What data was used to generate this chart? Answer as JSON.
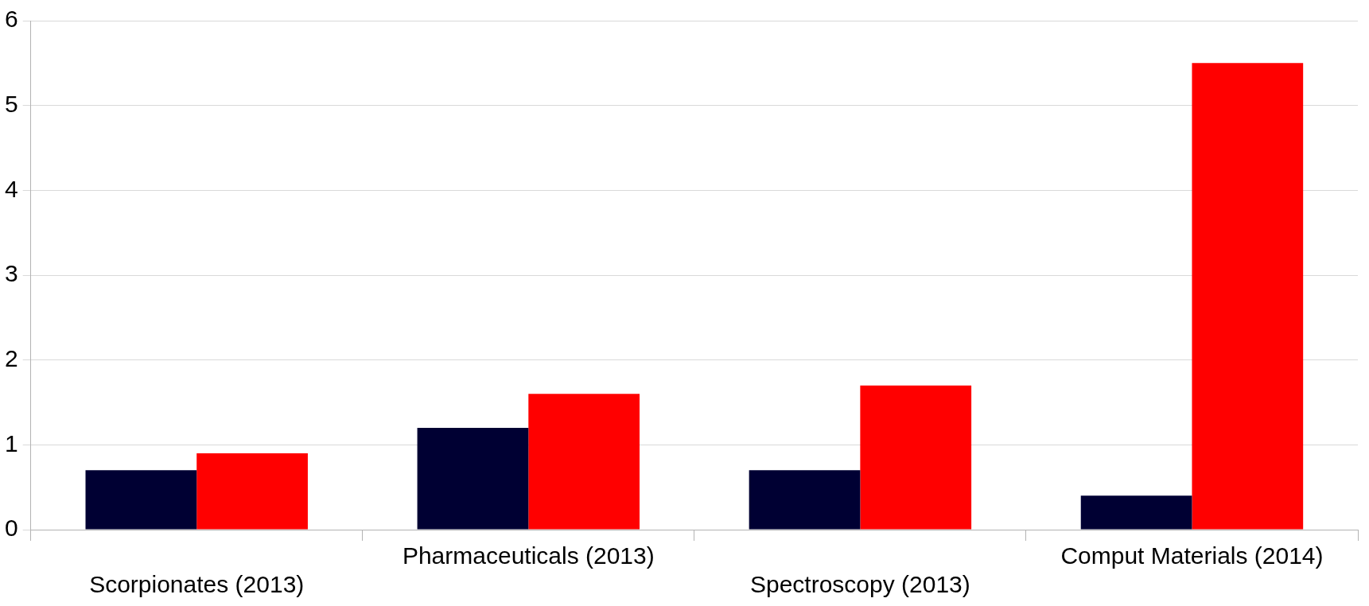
{
  "chart_data": {
    "type": "bar",
    "categories": [
      "Scorpionates (2013)",
      "Pharmaceuticals (2013)",
      "Spectroscopy (2013)",
      "Comput Materials (2014)"
    ],
    "series": [
      {
        "color": "#000033",
        "values": [
          0.7,
          1.2,
          0.7,
          0.4
        ]
      },
      {
        "color": "#ff0000",
        "values": [
          0.9,
          1.6,
          1.7,
          5.5
        ]
      }
    ],
    "ylim": [
      0,
      6
    ],
    "yticks": [
      0,
      1,
      2,
      3,
      4,
      5,
      6
    ],
    "grid": "y",
    "legend": false
  }
}
